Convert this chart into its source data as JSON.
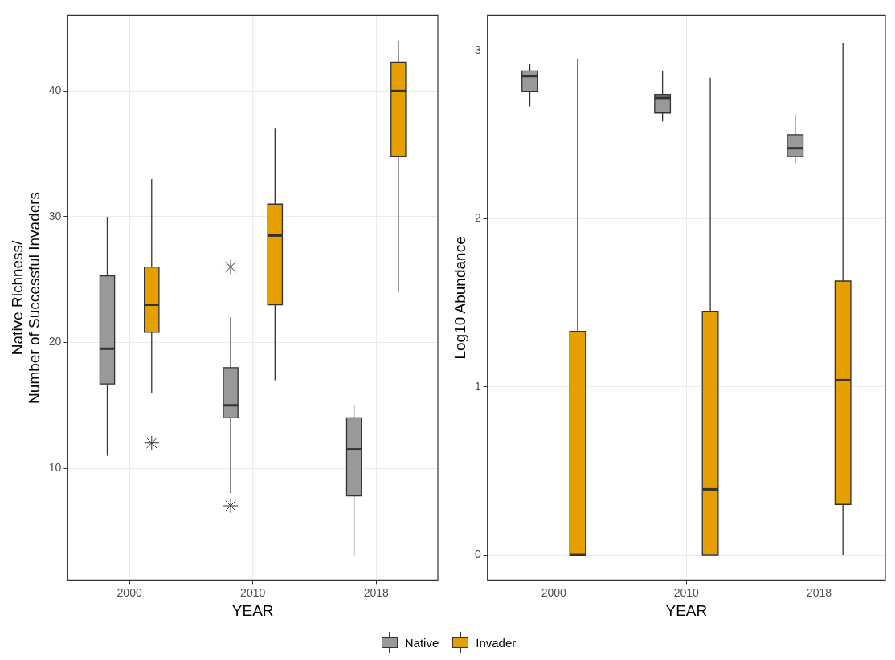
{
  "chart_data": [
    {
      "type": "box",
      "xlabel": "YEAR",
      "ylabel": "Native Richness/\nNumber of Successful Invaders",
      "categories": [
        "2000",
        "2010",
        "2018"
      ],
      "ylim": [
        1.1,
        46
      ],
      "yticks": [
        10,
        20,
        30,
        40
      ],
      "grid": true,
      "legend": "bottom",
      "marker": "star",
      "series": [
        {
          "name": "Native",
          "color": "#999999",
          "boxes": [
            {
              "low": 11,
              "q1": 16.7,
              "median": 19.5,
              "q3": 25.3,
              "high": 30
            },
            {
              "low": 8,
              "q1": 14,
              "median": 15,
              "q3": 18,
              "high": 22,
              "outliers": [
                26,
                7
              ]
            },
            {
              "low": 3,
              "q1": 7.8,
              "median": 11.5,
              "q3": 14,
              "high": 15
            }
          ]
        },
        {
          "name": "Invader",
          "color": "#e69f00",
          "boxes": [
            {
              "low": 16,
              "q1": 20.8,
              "median": 23,
              "q3": 26,
              "high": 33,
              "outliers": [
                12
              ]
            },
            {
              "low": 17,
              "q1": 23,
              "median": 28.5,
              "q3": 31,
              "high": 37
            },
            {
              "low": 24,
              "q1": 34.8,
              "median": 40,
              "q3": 42.3,
              "high": 44
            }
          ]
        }
      ]
    },
    {
      "type": "box",
      "xlabel": "YEAR",
      "ylabel": "Log10 Abundance",
      "categories": [
        "2000",
        "2010",
        "2018"
      ],
      "ylim": [
        -0.15,
        3.21
      ],
      "yticks": [
        0,
        1,
        2,
        3
      ],
      "grid": true,
      "series": [
        {
          "color": "#999999",
          "boxes": [
            {
              "low": 2.67,
              "q1": 2.76,
              "median": 2.85,
              "q3": 2.88,
              "high": 2.92
            },
            {
              "low": 2.58,
              "q1": 2.63,
              "median": 2.72,
              "q3": 2.74,
              "high": 2.88
            },
            {
              "low": 2.33,
              "q1": 2.37,
              "median": 2.42,
              "q3": 2.5,
              "high": 2.62
            }
          ]
        },
        {
          "color": "#e69f00",
          "boxes": [
            {
              "low": 0,
              "q1": 0,
              "median": 0,
              "q3": 1.33,
              "high": 2.95
            },
            {
              "low": 0,
              "q1": 0,
              "median": 0.39,
              "q3": 1.45,
              "high": 2.84
            },
            {
              "low": 0,
              "q1": 0.3,
              "median": 1.04,
              "q3": 1.63,
              "high": 3.05
            }
          ]
        }
      ]
    }
  ]
}
